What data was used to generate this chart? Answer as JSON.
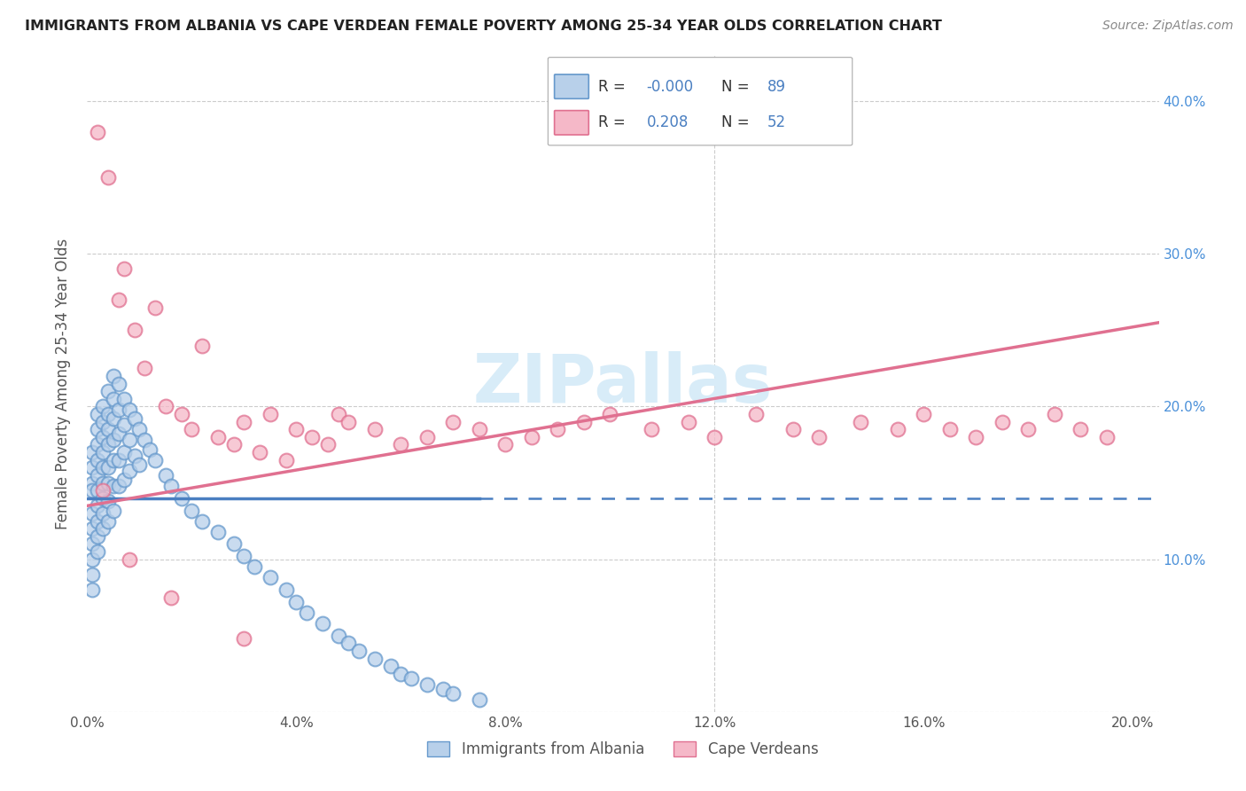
{
  "title": "IMMIGRANTS FROM ALBANIA VS CAPE VERDEAN FEMALE POVERTY AMONG 25-34 YEAR OLDS CORRELATION CHART",
  "source": "Source: ZipAtlas.com",
  "ylabel": "Female Poverty Among 25-34 Year Olds",
  "xlim": [
    0.0,
    0.205
  ],
  "ylim": [
    0.0,
    0.43
  ],
  "color_albania_fill": "#b8d0ea",
  "color_albania_edge": "#6699cc",
  "color_cape_verde_fill": "#f5b8c8",
  "color_cape_verde_edge": "#e07090",
  "color_albania_line": "#4a7fc1",
  "color_cape_verde_line": "#e07090",
  "color_grid": "#cccccc",
  "color_right_axis": "#4a90d9",
  "watermark_color": "#d8ecf8",
  "background_color": "#ffffff",
  "legend_text_color_dark": "#333333",
  "legend_text_color_blue": "#4a7fc1",
  "albania_x": [
    0.001,
    0.001,
    0.001,
    0.001,
    0.001,
    0.001,
    0.001,
    0.001,
    0.001,
    0.001,
    0.002,
    0.002,
    0.002,
    0.002,
    0.002,
    0.002,
    0.002,
    0.002,
    0.002,
    0.002,
    0.003,
    0.003,
    0.003,
    0.003,
    0.003,
    0.003,
    0.003,
    0.003,
    0.003,
    0.004,
    0.004,
    0.004,
    0.004,
    0.004,
    0.004,
    0.004,
    0.004,
    0.005,
    0.005,
    0.005,
    0.005,
    0.005,
    0.005,
    0.005,
    0.006,
    0.006,
    0.006,
    0.006,
    0.006,
    0.007,
    0.007,
    0.007,
    0.007,
    0.008,
    0.008,
    0.008,
    0.009,
    0.009,
    0.01,
    0.01,
    0.011,
    0.012,
    0.013,
    0.015,
    0.016,
    0.018,
    0.02,
    0.022,
    0.025,
    0.028,
    0.03,
    0.032,
    0.035,
    0.038,
    0.04,
    0.042,
    0.045,
    0.048,
    0.05,
    0.052,
    0.055,
    0.058,
    0.06,
    0.062,
    0.065,
    0.068,
    0.07,
    0.075
  ],
  "albania_y": [
    0.17,
    0.16,
    0.15,
    0.145,
    0.13,
    0.12,
    0.11,
    0.1,
    0.09,
    0.08,
    0.195,
    0.185,
    0.175,
    0.165,
    0.155,
    0.145,
    0.135,
    0.125,
    0.115,
    0.105,
    0.2,
    0.19,
    0.18,
    0.17,
    0.16,
    0.15,
    0.14,
    0.13,
    0.12,
    0.21,
    0.195,
    0.185,
    0.175,
    0.16,
    0.15,
    0.138,
    0.125,
    0.22,
    0.205,
    0.192,
    0.178,
    0.165,
    0.148,
    0.132,
    0.215,
    0.198,
    0.182,
    0.165,
    0.148,
    0.205,
    0.188,
    0.17,
    0.152,
    0.198,
    0.178,
    0.158,
    0.192,
    0.168,
    0.185,
    0.162,
    0.178,
    0.172,
    0.165,
    0.155,
    0.148,
    0.14,
    0.132,
    0.125,
    0.118,
    0.11,
    0.102,
    0.095,
    0.088,
    0.08,
    0.072,
    0.065,
    0.058,
    0.05,
    0.045,
    0.04,
    0.035,
    0.03,
    0.025,
    0.022,
    0.018,
    0.015,
    0.012,
    0.008
  ],
  "cape_verde_x": [
    0.002,
    0.004,
    0.006,
    0.007,
    0.009,
    0.011,
    0.013,
    0.015,
    0.018,
    0.02,
    0.022,
    0.025,
    0.028,
    0.03,
    0.033,
    0.035,
    0.038,
    0.04,
    0.043,
    0.046,
    0.048,
    0.05,
    0.055,
    0.06,
    0.065,
    0.07,
    0.075,
    0.08,
    0.085,
    0.09,
    0.095,
    0.1,
    0.108,
    0.115,
    0.12,
    0.128,
    0.135,
    0.14,
    0.148,
    0.155,
    0.16,
    0.165,
    0.17,
    0.175,
    0.18,
    0.185,
    0.19,
    0.195,
    0.003,
    0.008,
    0.016,
    0.03
  ],
  "cape_verde_y": [
    0.38,
    0.35,
    0.27,
    0.29,
    0.25,
    0.225,
    0.265,
    0.2,
    0.195,
    0.185,
    0.24,
    0.18,
    0.175,
    0.19,
    0.17,
    0.195,
    0.165,
    0.185,
    0.18,
    0.175,
    0.195,
    0.19,
    0.185,
    0.175,
    0.18,
    0.19,
    0.185,
    0.175,
    0.18,
    0.185,
    0.19,
    0.195,
    0.185,
    0.19,
    0.18,
    0.195,
    0.185,
    0.18,
    0.19,
    0.185,
    0.195,
    0.185,
    0.18,
    0.19,
    0.185,
    0.195,
    0.185,
    0.18,
    0.145,
    0.1,
    0.075,
    0.048
  ],
  "alb_line_x": [
    0.0,
    0.075
  ],
  "alb_line_y": [
    0.14,
    0.14
  ],
  "cv_line_x": [
    0.0,
    0.205
  ],
  "cv_line_y": [
    0.135,
    0.255
  ]
}
